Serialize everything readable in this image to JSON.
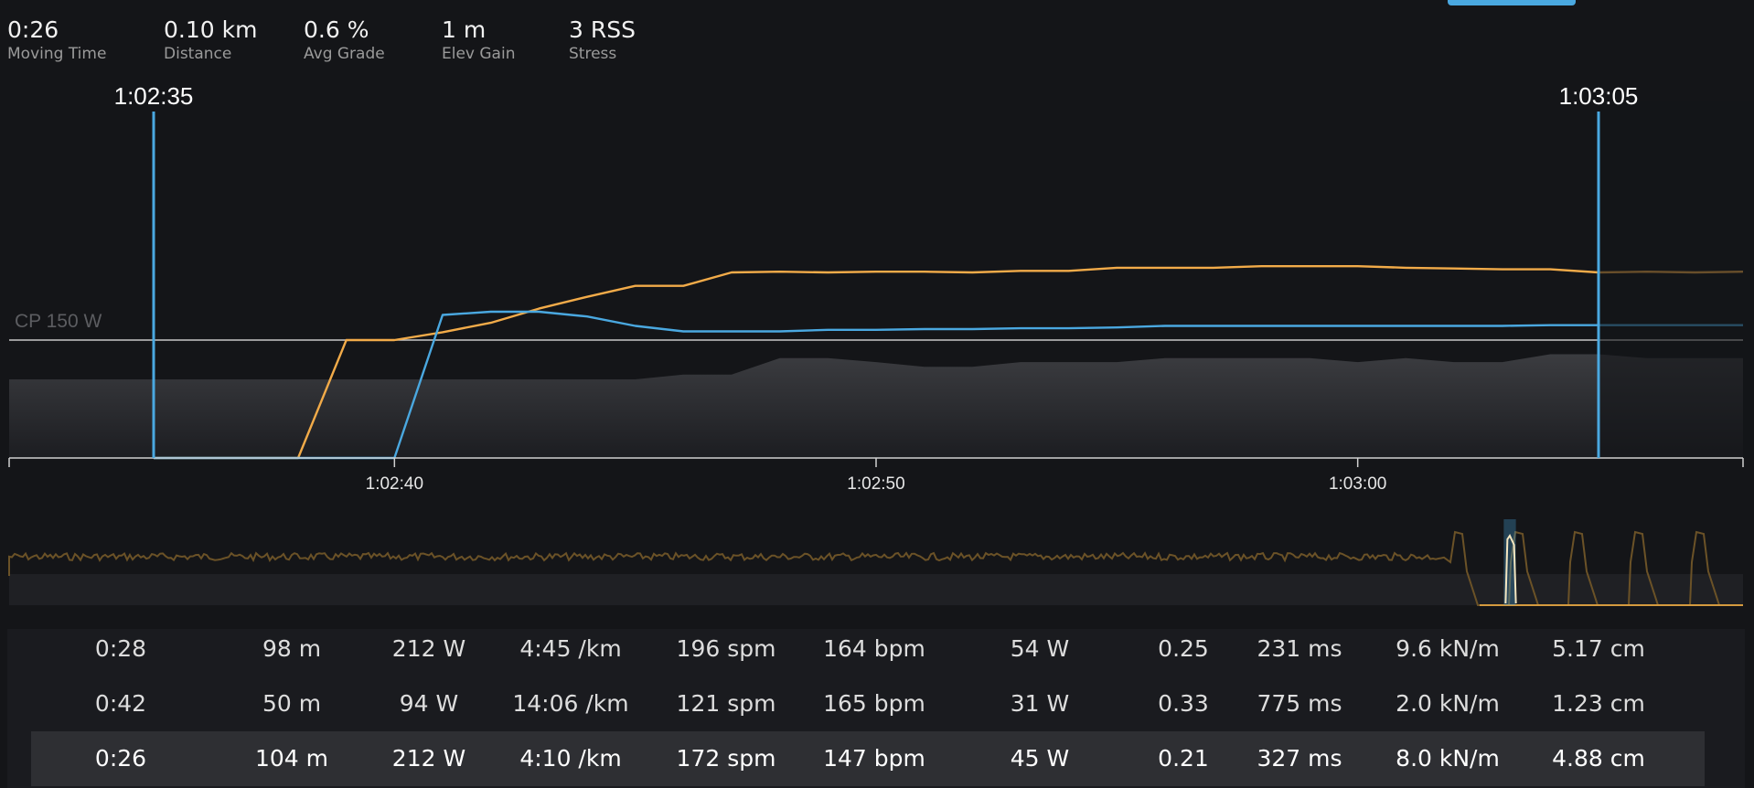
{
  "stats": [
    {
      "value": "0:26",
      "label": "Moving Time"
    },
    {
      "value": "0.10 km",
      "label": "Distance"
    },
    {
      "value": "0.6 %",
      "label": "Avg Grade"
    },
    {
      "value": "1 m",
      "label": "Elev Gain"
    },
    {
      "value": "3 RSS",
      "label": "Stress"
    }
  ],
  "colors": {
    "orange": "#f2ab49",
    "blue": "#4aa8e0",
    "background": "#141518",
    "elevation": "#3b3c40"
  },
  "chart_data": {
    "type": "line",
    "x_domain": [
      "1:02:32",
      "1:03:08"
    ],
    "x_ticks": [
      "1:02:40",
      "1:02:50",
      "1:03:00"
    ],
    "reference_line": {
      "label": "CP 150 W",
      "value": 150
    },
    "selection": {
      "start": "1:02:35",
      "end": "1:03:05"
    },
    "series": [
      {
        "color": "orange",
        "x": [
          "1:02:35",
          "1:02:36",
          "1:02:37",
          "1:02:38",
          "1:02:39",
          "1:02:40",
          "1:02:41",
          "1:02:42",
          "1:02:43",
          "1:02:44",
          "1:02:45",
          "1:02:46",
          "1:02:47",
          "1:02:48",
          "1:02:49",
          "1:02:50",
          "1:02:51",
          "1:02:52",
          "1:02:53",
          "1:02:54",
          "1:02:55",
          "1:02:56",
          "1:02:57",
          "1:02:58",
          "1:02:59",
          "1:03:00",
          "1:03:01",
          "1:03:02",
          "1:03:03",
          "1:03:04",
          "1:03:05",
          "1:03:06",
          "1:03:07",
          "1:03:08"
        ],
        "y": [
          0,
          0,
          0,
          0,
          150,
          150,
          160,
          172,
          190,
          205,
          219,
          219,
          236,
          237,
          236,
          237,
          237,
          236,
          238,
          238,
          242,
          242,
          242,
          244,
          244,
          244,
          242,
          241,
          240,
          240,
          236,
          237,
          236,
          237
        ]
      },
      {
        "color": "blue",
        "x": [
          "1:02:35",
          "1:02:36",
          "1:02:37",
          "1:02:38",
          "1:02:39",
          "1:02:40",
          "1:02:41",
          "1:02:42",
          "1:02:43",
          "1:02:44",
          "1:02:45",
          "1:02:46",
          "1:02:47",
          "1:02:48",
          "1:02:49",
          "1:02:50",
          "1:02:51",
          "1:02:52",
          "1:02:53",
          "1:02:54",
          "1:02:55",
          "1:02:56",
          "1:02:57",
          "1:02:58",
          "1:02:59",
          "1:03:00",
          "1:03:01",
          "1:03:02",
          "1:03:03",
          "1:03:04",
          "1:03:05",
          "1:03:06",
          "1:03:07",
          "1:03:08"
        ],
        "y": [
          0,
          0,
          0,
          0,
          0,
          0,
          182,
          186,
          186,
          180,
          168,
          161,
          161,
          161,
          163,
          163,
          164,
          164,
          165,
          165,
          166,
          168,
          168,
          168,
          168,
          168,
          168,
          168,
          168,
          169,
          169,
          169,
          169,
          169
        ]
      },
      {
        "color": "elevation",
        "x": [
          "1:02:32",
          "1:02:45",
          "1:02:46",
          "1:02:47",
          "1:02:48",
          "1:02:49",
          "1:02:50",
          "1:02:51",
          "1:02:52",
          "1:02:53",
          "1:02:54",
          "1:02:55",
          "1:02:56",
          "1:02:57",
          "1:02:58",
          "1:02:59",
          "1:03:00",
          "1:03:01",
          "1:03:02",
          "1:03:03",
          "1:03:04",
          "1:03:05",
          "1:03:06",
          "1:03:07",
          "1:03:08"
        ],
        "y": [
          100,
          100,
          106,
          106,
          127,
          127,
          122,
          116,
          116,
          122,
          122,
          122,
          127,
          127,
          127,
          127,
          122,
          127,
          122,
          122,
          132,
          132,
          127,
          127,
          127
        ]
      }
    ]
  },
  "overview": {
    "selection_fraction": [
      0.862,
      0.869
    ]
  },
  "table": {
    "rows": [
      [
        "0:28",
        "98 m",
        "212 W",
        "4:45 /km",
        "196 spm",
        "164 bpm",
        "54 W",
        "0.25",
        "231 ms",
        "9.6 kN/m",
        "5.17 cm"
      ],
      [
        "0:42",
        "50 m",
        "94 W",
        "14:06 /km",
        "121 spm",
        "165 bpm",
        "31 W",
        "0.33",
        "775 ms",
        "2.0 kN/m",
        "1.23 cm"
      ],
      [
        "0:26",
        "104 m",
        "212 W",
        "4:10 /km",
        "172 spm",
        "147 bpm",
        "45 W",
        "0.21",
        "327 ms",
        "8.0 kN/m",
        "4.88 cm"
      ]
    ],
    "highlighted_row": 2
  }
}
